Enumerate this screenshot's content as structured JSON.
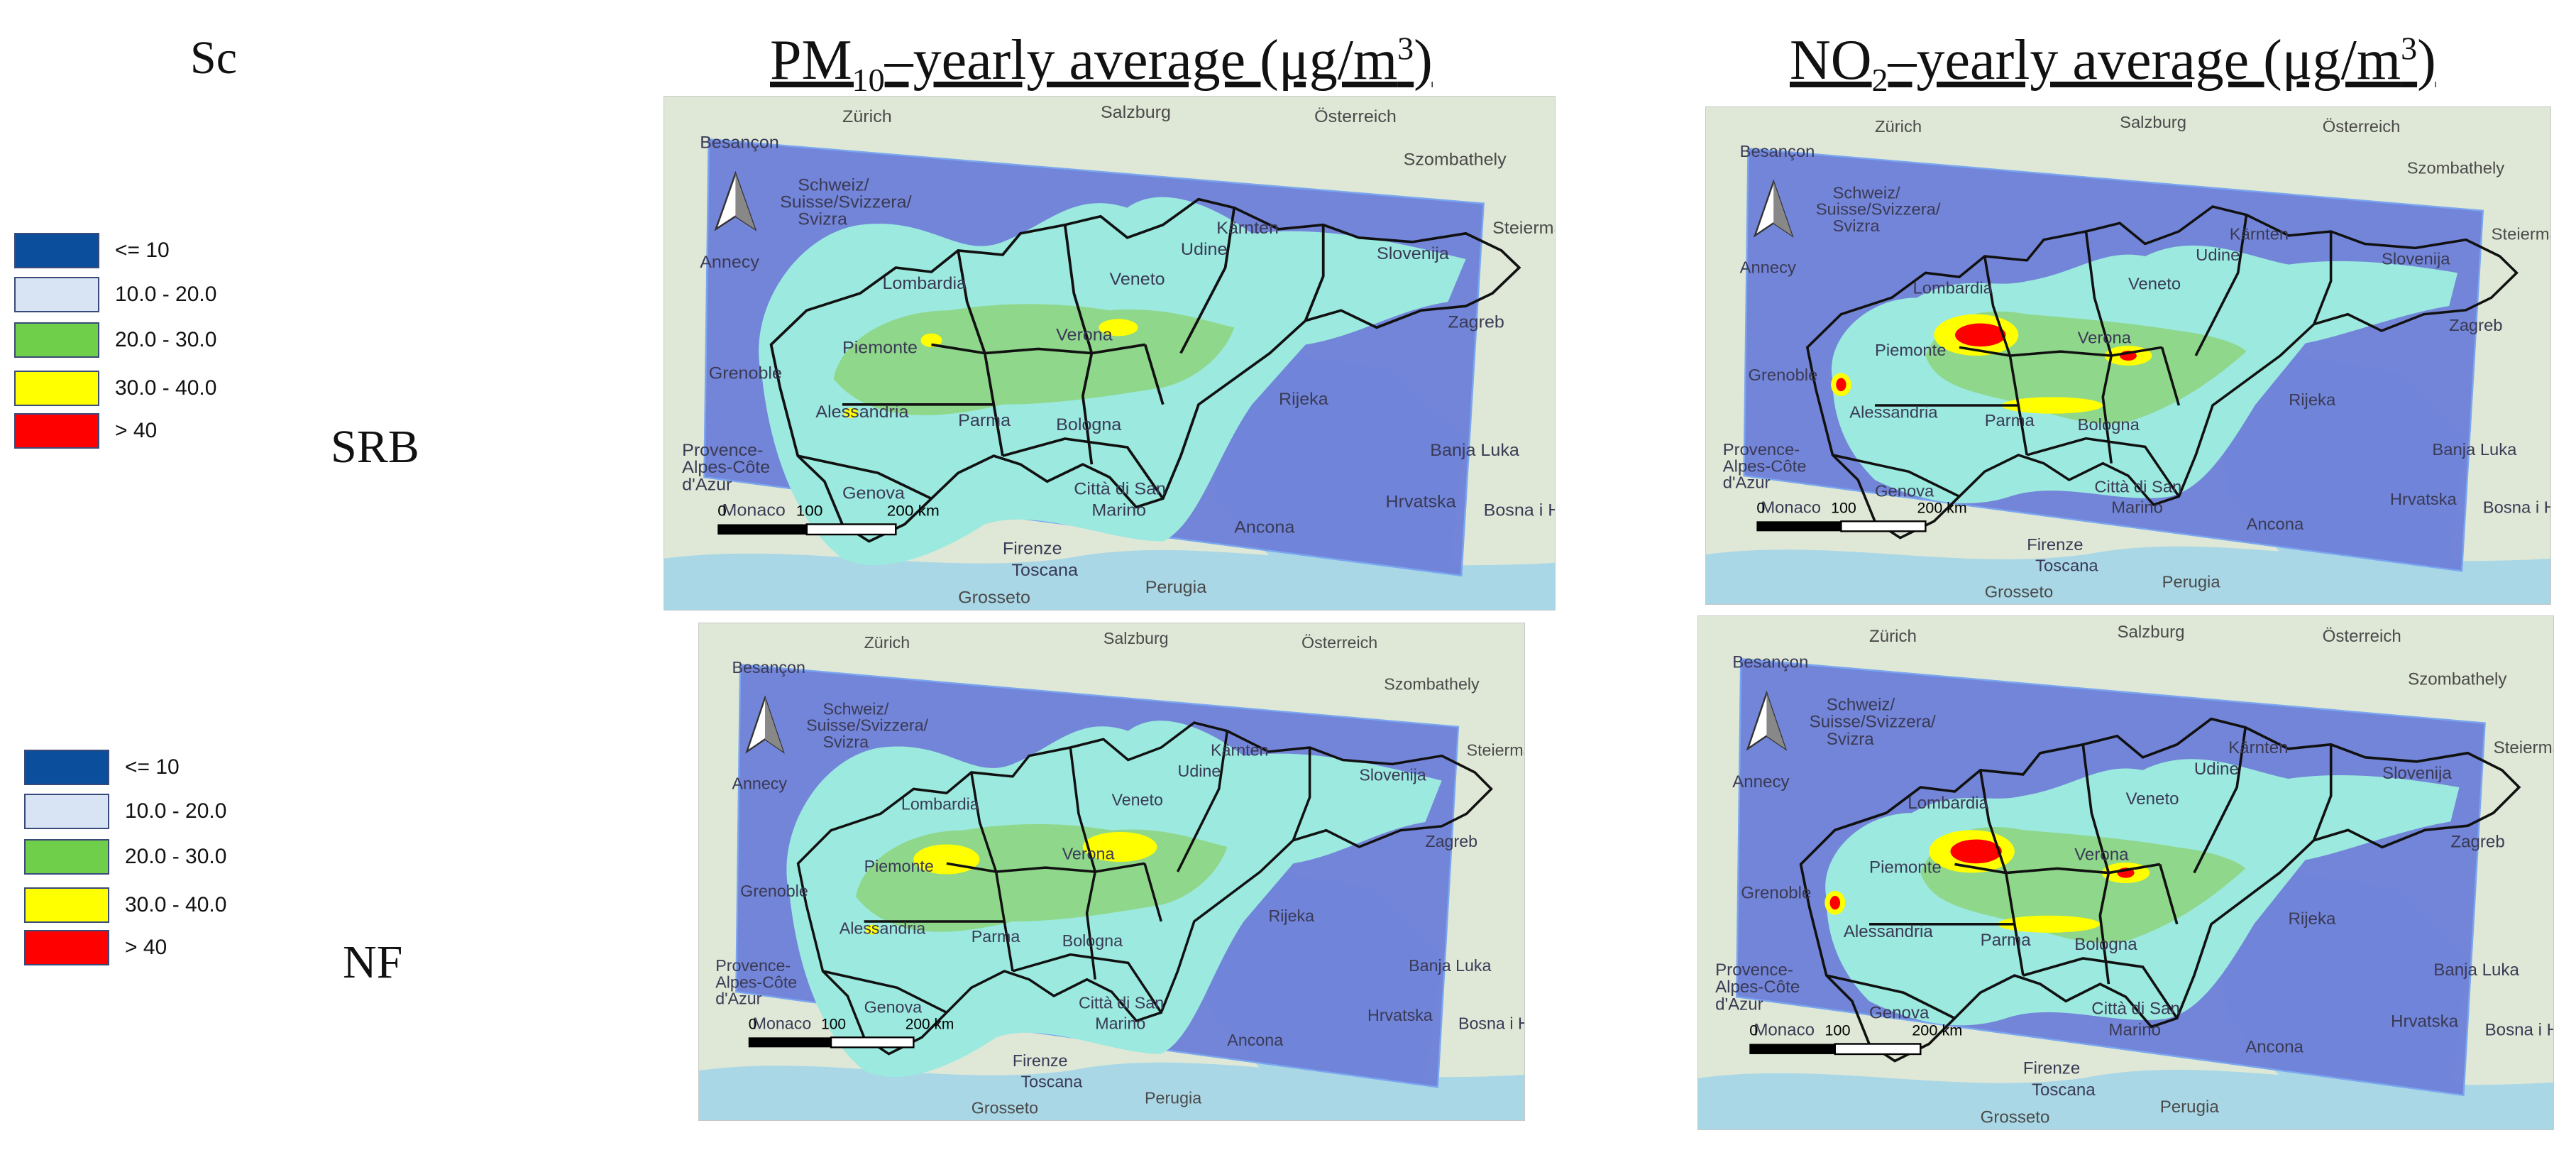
{
  "header": {
    "sc_label": "Sc",
    "pm_title": {
      "pre": "PM",
      "sub": "10",
      "post": "–yearly average (μg/m",
      "sup": "3",
      "end": ")"
    },
    "no2_title": {
      "pre": "NO",
      "sub": "2",
      "post": "–yearly average (μg/m",
      "sup": "3",
      "end": ")"
    }
  },
  "rows": [
    {
      "label": "SRB"
    },
    {
      "label": "NF"
    }
  ],
  "legend": {
    "items": [
      {
        "label": "<= 10",
        "color": "#0b4f9c"
      },
      {
        "label": "10.0 - 20.0",
        "color": "#d8e4f3"
      },
      {
        "label": "20.0 - 30.0",
        "color": "#6fcf4a"
      },
      {
        "label": "30.0 - 40.0",
        "color": "#ffff00"
      },
      {
        "label": "> 40",
        "color": "#ff0000"
      }
    ]
  },
  "map_labels": {
    "top": [
      "Zürich",
      "Salzburg",
      "Österreich"
    ],
    "upper_right": [
      "Steiermark",
      "Szombathely"
    ],
    "swiss": [
      "Schweiz/",
      "Suisse/Svizzera/",
      "Svizra"
    ],
    "west": [
      "Besançon",
      "Annecy",
      "Grenoble",
      "Provence-",
      "Alpes-Côte",
      "d'Azur",
      "Monaco"
    ],
    "center": [
      "Lombardia",
      "Piemonte",
      "Alessandria",
      "Verona",
      "Parma",
      "Bologna",
      "Veneto",
      "Genova",
      "Firenze",
      "Toscana",
      "Città di San",
      "Marino",
      "Slovenija",
      "Zagreb",
      "Rijeka",
      "Hrvatska",
      "Ancona",
      "Perugia",
      "Grosseto",
      "Banja Luka",
      "Bosna i H",
      "Udine",
      "Kärnten"
    ],
    "scale": [
      "0",
      "100",
      "200 km"
    ]
  },
  "colors": {
    "domain_blue": "#6d7fd8",
    "sea": "#a9d7e6",
    "land": "#dfe8d6",
    "cyan": "#9be9df",
    "green": "#8fd78a"
  }
}
